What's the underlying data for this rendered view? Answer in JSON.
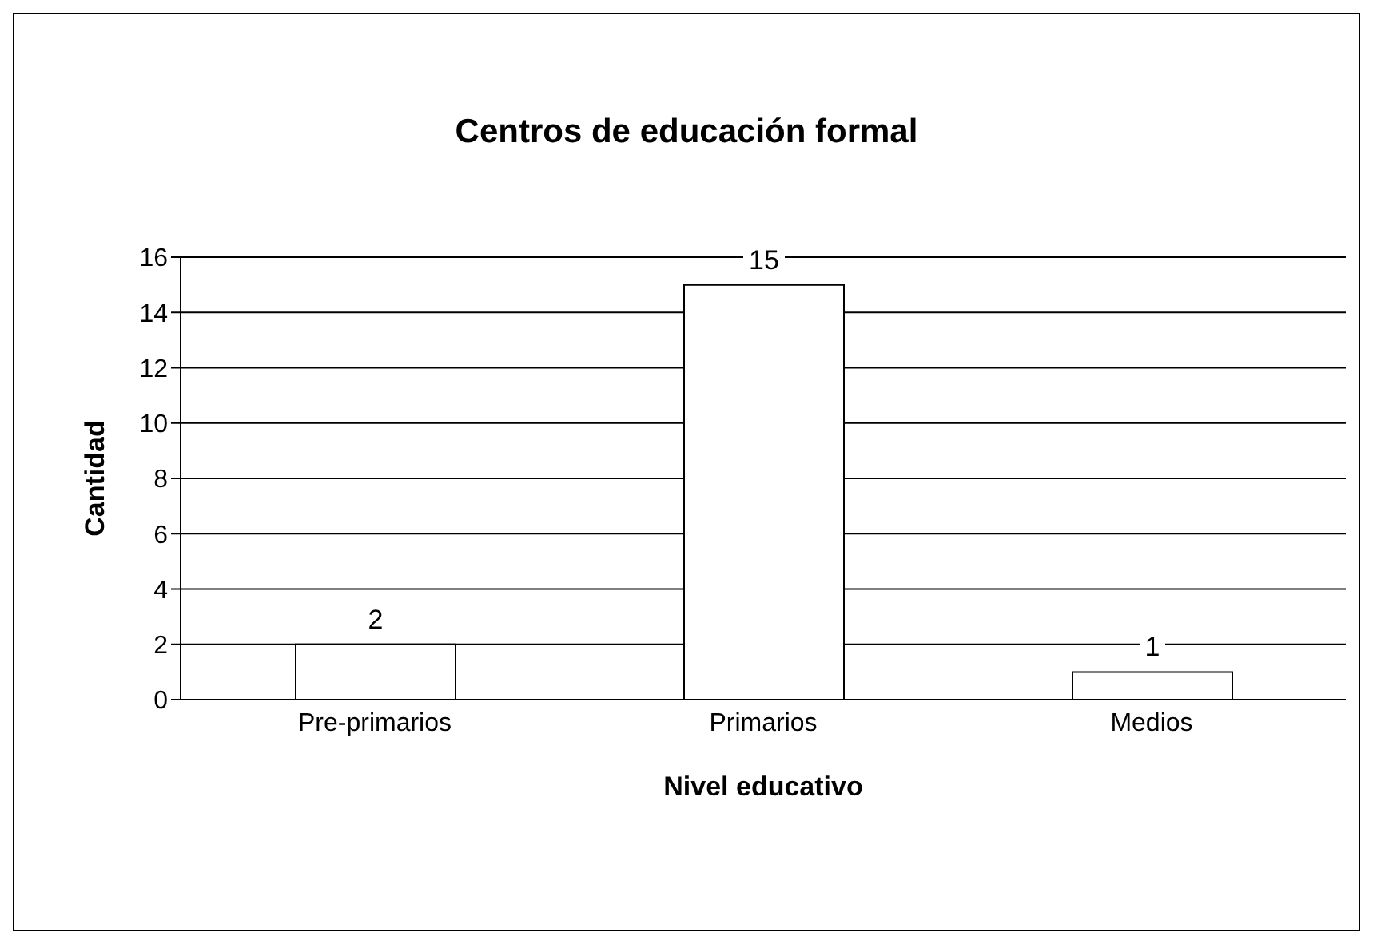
{
  "chart_data": {
    "type": "bar",
    "title": "Centros de educación formal",
    "xlabel": "Nivel educativo",
    "ylabel": "Cantidad",
    "categories": [
      "Pre-primarios",
      "Primarios",
      "Medios"
    ],
    "values": [
      2,
      15,
      1
    ],
    "color": "#ffffff",
    "ylim": [
      0,
      16
    ],
    "yticks": [
      0,
      2,
      4,
      6,
      8,
      10,
      12,
      14,
      16
    ],
    "grid": "y",
    "data_labels": true,
    "legend": false
  }
}
